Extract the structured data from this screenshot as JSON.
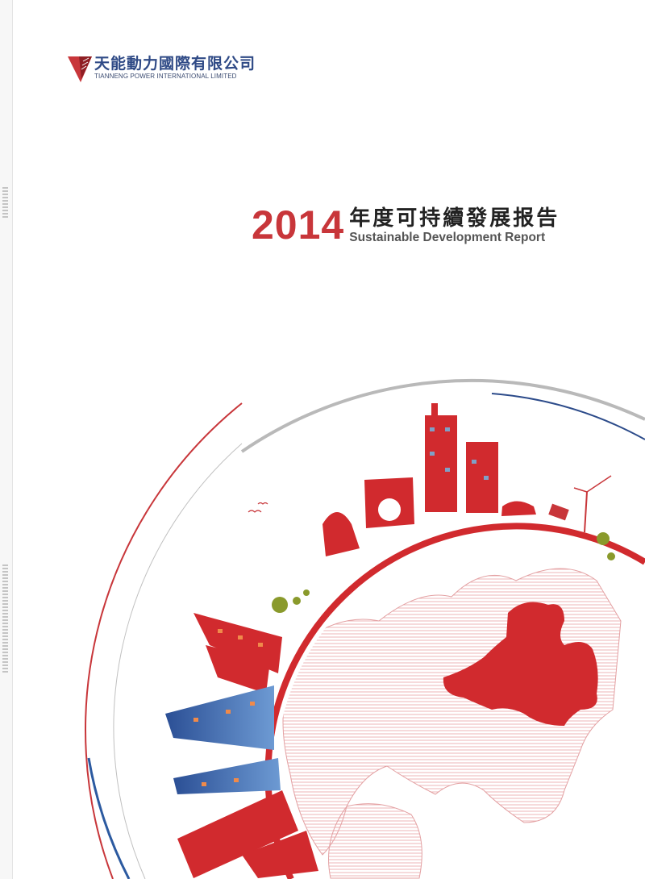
{
  "company": {
    "name_cn": "天能動力國際有限公司",
    "name_en": "TIANNENG POWER INTERNATIONAL LIMITED",
    "logo_icon": "tianneng-v-logo"
  },
  "report": {
    "year": "2014",
    "title_cn": "年度可持續發展报告",
    "title_en": "Sustainable Development Report"
  },
  "colors": {
    "brand_red": "#c8363a",
    "brand_blue": "#2f4a86",
    "globe_red": "#d12a2e",
    "building_blue": "#3f6fb0"
  }
}
